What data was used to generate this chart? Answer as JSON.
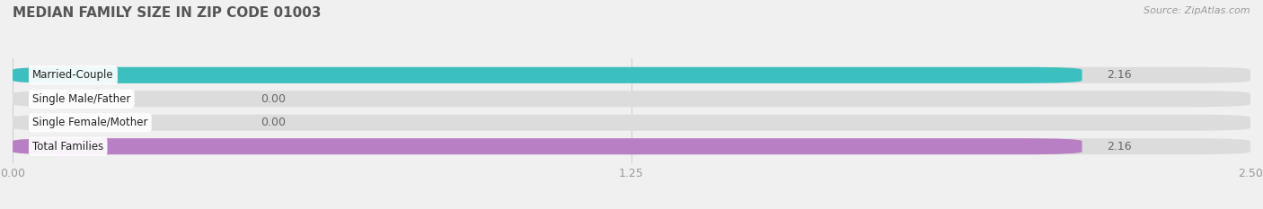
{
  "title": "MEDIAN FAMILY SIZE IN ZIP CODE 01003",
  "source": "Source: ZipAtlas.com",
  "categories": [
    "Married-Couple",
    "Single Male/Father",
    "Single Female/Mother",
    "Total Families"
  ],
  "values": [
    2.16,
    0.0,
    0.0,
    2.16
  ],
  "bar_colors": [
    "#3bbfbf",
    "#9baede",
    "#f2a0b4",
    "#b87fc4"
  ],
  "xlim": [
    0,
    2.5
  ],
  "xticks": [
    0.0,
    1.25,
    2.5
  ],
  "xtick_labels": [
    "0.00",
    "1.25",
    "2.50"
  ],
  "background_color": "#f0f0f0",
  "bar_bg_color": "#dcdcdc",
  "title_fontsize": 11,
  "bar_label_fontsize": 9,
  "tick_fontsize": 9,
  "category_fontsize": 8.5,
  "source_fontsize": 8,
  "bar_height": 0.68,
  "bar_gap": 1.0,
  "value_color": "#666666"
}
